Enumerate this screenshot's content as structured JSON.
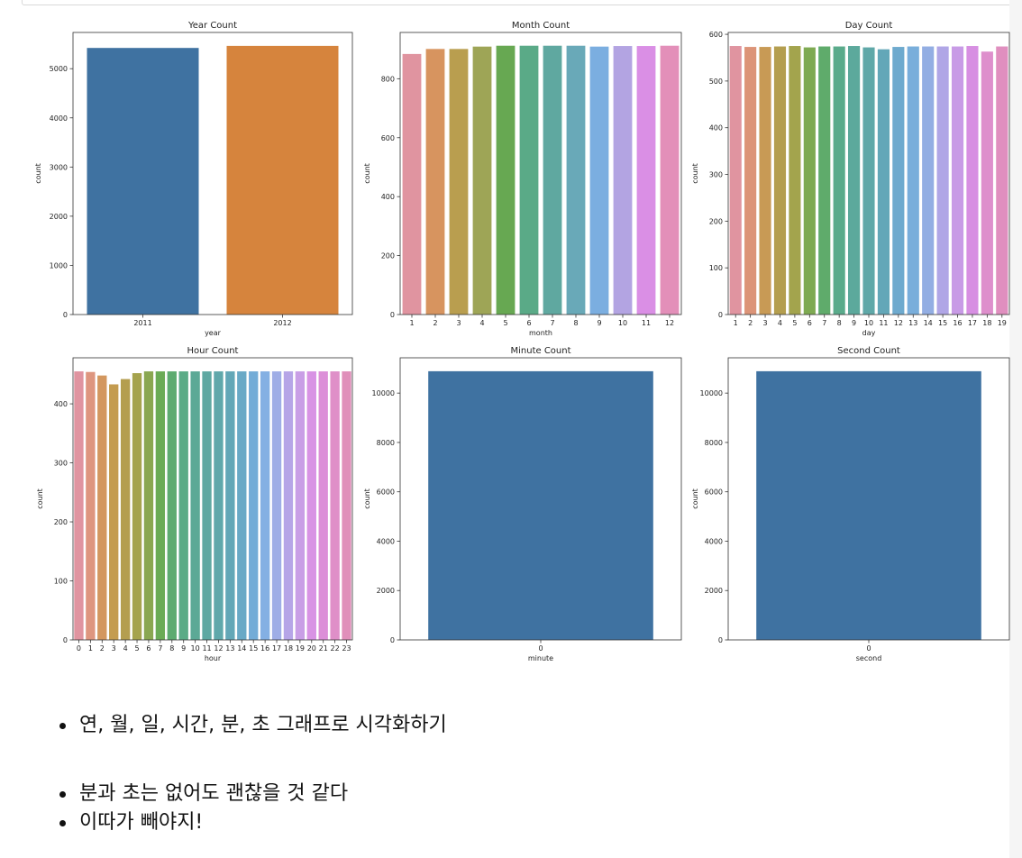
{
  "chart_data": [
    {
      "type": "bar",
      "title": "Year Count",
      "xlabel": "year",
      "ylabel": "count",
      "categories": [
        "2011",
        "2012"
      ],
      "values": [
        5422,
        5464
      ],
      "ylim": [
        0,
        5737
      ],
      "yticks": [
        0,
        1000,
        2000,
        3000,
        4000,
        5000
      ],
      "colors": [
        "#3f72a1",
        "#d6843d"
      ]
    },
    {
      "type": "bar",
      "title": "Month Count",
      "xlabel": "month",
      "ylabel": "count",
      "categories": [
        "1",
        "2",
        "3",
        "4",
        "5",
        "6",
        "7",
        "8",
        "9",
        "10",
        "11",
        "12"
      ],
      "values": [
        884,
        901,
        901,
        909,
        912,
        912,
        912,
        912,
        909,
        911,
        911,
        912
      ],
      "ylim": [
        0,
        957
      ],
      "yticks": [
        0,
        200,
        400,
        600,
        800
      ],
      "colors": [
        "#e094a0",
        "#d7945f",
        "#b99e4f",
        "#9ea556",
        "#67a852",
        "#5aaa87",
        "#5fa8a0",
        "#69a9b8",
        "#7baee0",
        "#b3a4e2",
        "#da8fe5",
        "#e38fb9"
      ]
    },
    {
      "type": "bar",
      "title": "Day Count",
      "xlabel": "day",
      "ylabel": "count",
      "categories": [
        "1",
        "2",
        "3",
        "4",
        "5",
        "6",
        "7",
        "8",
        "9",
        "10",
        "11",
        "12",
        "13",
        "14",
        "15",
        "16",
        "17",
        "18",
        "19"
      ],
      "values": [
        575,
        573,
        573,
        574,
        575,
        572,
        574,
        574,
        575,
        572,
        568,
        573,
        574,
        574,
        574,
        574,
        575,
        563,
        574
      ],
      "ylim": [
        0,
        604
      ],
      "yticks": [
        0,
        100,
        200,
        300,
        400,
        500,
        600
      ],
      "colors": [
        "#e094a0",
        "#dc9478",
        "#c89a55",
        "#b49e4f",
        "#a3a44d",
        "#7eaa52",
        "#5fab6b",
        "#5aab8b",
        "#5ca99c",
        "#5fa8a8",
        "#63a7b8",
        "#6eaace",
        "#79aedb",
        "#93aee3",
        "#b0a6e6",
        "#c89be6",
        "#d78fe2",
        "#de8fcc",
        "#e08fbf"
      ]
    },
    {
      "type": "bar",
      "title": "Hour Count",
      "xlabel": "hour",
      "ylabel": "count",
      "categories": [
        "0",
        "1",
        "2",
        "3",
        "4",
        "5",
        "6",
        "7",
        "8",
        "9",
        "10",
        "11",
        "12",
        "13",
        "14",
        "15",
        "16",
        "17",
        "18",
        "19",
        "20",
        "21",
        "22",
        "23"
      ],
      "values": [
        455,
        454,
        448,
        433,
        442,
        452,
        455,
        455,
        455,
        455,
        455,
        455,
        455,
        455,
        455,
        455,
        455,
        455,
        455,
        455,
        455,
        455,
        455,
        455
      ],
      "ylim": [
        0,
        478
      ],
      "yticks": [
        0,
        100,
        200,
        300,
        400
      ],
      "colors": [
        "#e094a0",
        "#de967f",
        "#d3975f",
        "#c49c50",
        "#b49e4f",
        "#a5a34d",
        "#8aa751",
        "#6aab56",
        "#5dab70",
        "#5aab86",
        "#5ca996",
        "#5ea8a2",
        "#60a8ab",
        "#63a7b7",
        "#69a9c6",
        "#73acd7",
        "#84b0e3",
        "#9eade6",
        "#b6a5e7",
        "#c99ee6",
        "#d893e4",
        "#dc8fd8",
        "#df8fc8",
        "#e08fba"
      ]
    },
    {
      "type": "bar",
      "title": "Minute Count",
      "xlabel": "minute",
      "ylabel": "count",
      "categories": [
        "0"
      ],
      "values": [
        10886
      ],
      "ylim": [
        0,
        11430
      ],
      "yticks": [
        0,
        2000,
        4000,
        6000,
        8000,
        10000
      ],
      "colors": [
        "#3f72a1"
      ]
    },
    {
      "type": "bar",
      "title": "Second Count",
      "xlabel": "second",
      "ylabel": "count",
      "categories": [
        "0"
      ],
      "values": [
        10886
      ],
      "ylim": [
        0,
        11430
      ],
      "yticks": [
        0,
        2000,
        4000,
        6000,
        8000,
        10000
      ],
      "colors": [
        "#3f72a1"
      ]
    }
  ],
  "notes": {
    "items": [
      "연, 월, 일, 시간, 분, 초 그래프로 시각화하기",
      "분과 초는 없어도 괜찮을 것 같다",
      "이따가 빼야지!"
    ]
  }
}
